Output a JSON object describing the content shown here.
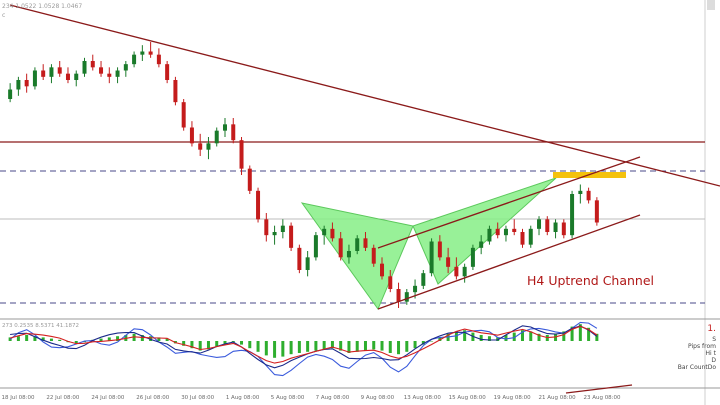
{
  "chart_data": {
    "type": "candlestick",
    "symbol_header": "234 1.0522 1.0528 1.0467",
    "annotation": "H4 Uptrend Channel",
    "x_tick_labels": [
      "18 Jul 08:00",
      "22 Jul 08:00",
      "24 Jul 08:00",
      "26 Jul 08:00",
      "30 Jul 08:00",
      "1 Aug 08:00",
      "5 Aug 08:00",
      "7 Aug 08:00",
      "9 Aug 08:00",
      "13 Aug 08:00",
      "15 Aug 08:00",
      "19 Aug 08:00",
      "21 Aug 08:00",
      "23 Aug 08:00"
    ],
    "price_scale": [
      1.0,
      10.0
    ],
    "candles": [
      [
        7.6,
        8.1,
        7.5,
        7.9
      ],
      [
        7.9,
        8.3,
        7.7,
        8.2
      ],
      [
        8.2,
        8.4,
        7.8,
        8.0
      ],
      [
        8.0,
        8.6,
        7.9,
        8.5
      ],
      [
        8.5,
        8.7,
        8.2,
        8.3
      ],
      [
        8.3,
        8.7,
        8.1,
        8.6
      ],
      [
        8.6,
        8.8,
        8.3,
        8.4
      ],
      [
        8.4,
        8.6,
        8.1,
        8.2
      ],
      [
        8.2,
        8.5,
        8.0,
        8.4
      ],
      [
        8.4,
        8.9,
        8.3,
        8.8
      ],
      [
        8.8,
        9.0,
        8.5,
        8.6
      ],
      [
        8.6,
        8.8,
        8.3,
        8.4
      ],
      [
        8.4,
        8.6,
        8.1,
        8.3
      ],
      [
        8.3,
        8.6,
        8.1,
        8.5
      ],
      [
        8.5,
        8.8,
        8.3,
        8.7
      ],
      [
        8.7,
        9.1,
        8.6,
        9.0
      ],
      [
        9.0,
        9.3,
        8.8,
        9.1
      ],
      [
        9.1,
        9.4,
        8.9,
        9.0
      ],
      [
        9.0,
        9.2,
        8.6,
        8.7
      ],
      [
        8.7,
        8.8,
        8.1,
        8.2
      ],
      [
        8.2,
        8.3,
        7.4,
        7.5
      ],
      [
        7.5,
        7.6,
        6.6,
        6.7
      ],
      [
        6.7,
        6.9,
        6.1,
        6.2
      ],
      [
        6.2,
        6.5,
        5.8,
        6.0
      ],
      [
        6.0,
        6.4,
        5.7,
        6.2
      ],
      [
        6.2,
        6.7,
        6.1,
        6.6
      ],
      [
        6.6,
        7.0,
        6.4,
        6.8
      ],
      [
        6.8,
        7.0,
        6.2,
        6.3
      ],
      [
        6.3,
        6.4,
        5.2,
        5.4
      ],
      [
        5.4,
        5.5,
        4.6,
        4.7
      ],
      [
        4.7,
        4.8,
        3.7,
        3.8
      ],
      [
        3.8,
        4.0,
        3.1,
        3.3
      ],
      [
        3.3,
        3.6,
        3.0,
        3.4
      ],
      [
        3.4,
        3.8,
        3.2,
        3.6
      ],
      [
        3.6,
        3.7,
        2.8,
        2.9
      ],
      [
        2.9,
        3.0,
        2.1,
        2.2
      ],
      [
        2.2,
        2.8,
        2.0,
        2.6
      ],
      [
        2.6,
        3.4,
        2.5,
        3.3
      ],
      [
        3.3,
        3.6,
        3.0,
        3.5
      ],
      [
        3.5,
        3.7,
        3.1,
        3.2
      ],
      [
        3.2,
        3.4,
        2.5,
        2.6
      ],
      [
        2.6,
        3.0,
        2.4,
        2.8
      ],
      [
        2.8,
        3.3,
        2.7,
        3.2
      ],
      [
        3.2,
        3.4,
        2.8,
        2.9
      ],
      [
        2.9,
        3.0,
        2.3,
        2.4
      ],
      [
        2.4,
        2.6,
        1.9,
        2.0
      ],
      [
        2.0,
        2.2,
        1.5,
        1.6
      ],
      [
        1.6,
        1.8,
        1.0,
        1.2
      ],
      [
        1.2,
        1.6,
        1.1,
        1.5
      ],
      [
        1.5,
        1.9,
        1.3,
        1.7
      ],
      [
        1.7,
        2.2,
        1.6,
        2.1
      ],
      [
        2.1,
        3.2,
        2.0,
        3.1
      ],
      [
        3.1,
        3.3,
        2.5,
        2.6
      ],
      [
        2.6,
        2.9,
        2.1,
        2.3
      ],
      [
        2.3,
        2.6,
        1.9,
        2.0
      ],
      [
        2.0,
        2.4,
        1.8,
        2.3
      ],
      [
        2.3,
        3.0,
        2.2,
        2.9
      ],
      [
        2.9,
        3.3,
        2.7,
        3.1
      ],
      [
        3.1,
        3.6,
        3.0,
        3.5
      ],
      [
        3.5,
        3.7,
        3.2,
        3.3
      ],
      [
        3.3,
        3.6,
        3.1,
        3.5
      ],
      [
        3.5,
        3.8,
        3.3,
        3.4
      ],
      [
        3.4,
        3.5,
        2.9,
        3.0
      ],
      [
        3.0,
        3.6,
        2.9,
        3.5
      ],
      [
        3.5,
        3.9,
        3.3,
        3.8
      ],
      [
        3.8,
        3.9,
        3.3,
        3.4
      ],
      [
        3.4,
        3.8,
        3.2,
        3.7
      ],
      [
        3.7,
        3.8,
        3.2,
        3.3
      ],
      [
        3.3,
        4.7,
        3.2,
        4.6
      ],
      [
        4.6,
        4.9,
        4.3,
        4.7
      ],
      [
        4.7,
        4.8,
        4.3,
        4.4
      ],
      [
        4.4,
        4.5,
        3.6,
        3.7
      ]
    ],
    "indicator": {
      "header": "273 0.2535 8.5371 41.1872",
      "right_labels": [
        "1.",
        "S",
        "Pips from",
        "Hi t",
        "D",
        "Bar CountDo"
      ]
    }
  }
}
